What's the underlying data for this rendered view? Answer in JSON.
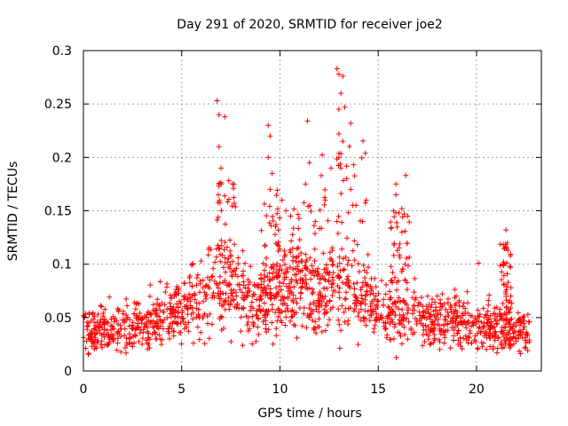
{
  "chart_data": {
    "type": "scatter",
    "title": "Day 291 of 2020, SRMTID for receiver joe2",
    "xlabel": "GPS time / hours",
    "ylabel": "SRMTID / TECUs",
    "xlim": [
      0,
      23.3
    ],
    "ylim": [
      0,
      0.3
    ],
    "x_ticks": [
      0,
      5,
      10,
      15,
      20
    ],
    "x_tick_labels": [
      "0",
      "5",
      "10",
      "15",
      "20"
    ],
    "y_ticks": [
      0,
      0.05,
      0.1,
      0.15,
      0.2,
      0.25,
      0.3
    ],
    "y_tick_labels": [
      "0",
      "0.05",
      "0.1",
      "0.15",
      "0.2",
      "0.25",
      "0.3"
    ],
    "grid": true,
    "marker": "+",
    "color": "#ff0000",
    "x_range_of_data": [
      0,
      22.7
    ],
    "baseline_envelope": [
      [
        0,
        0.038
      ],
      [
        1,
        0.04
      ],
      [
        2,
        0.04
      ],
      [
        3,
        0.042
      ],
      [
        4,
        0.05
      ],
      [
        5,
        0.058
      ],
      [
        6,
        0.068
      ],
      [
        6.8,
        0.082
      ],
      [
        7.5,
        0.078
      ],
      [
        8.5,
        0.066
      ],
      [
        9.5,
        0.068
      ],
      [
        10.2,
        0.085
      ],
      [
        11,
        0.08
      ],
      [
        12,
        0.07
      ],
      [
        13,
        0.085
      ],
      [
        14,
        0.075
      ],
      [
        15,
        0.058
      ],
      [
        16,
        0.052
      ],
      [
        17,
        0.05
      ],
      [
        18,
        0.048
      ],
      [
        19,
        0.046
      ],
      [
        20,
        0.044
      ],
      [
        21,
        0.04
      ],
      [
        22,
        0.038
      ],
      [
        22.7,
        0.036
      ]
    ],
    "notable_points": [
      {
        "x": 6.8,
        "y": 0.253
      },
      {
        "x": 6.9,
        "y": 0.24
      },
      {
        "x": 7.2,
        "y": 0.238
      },
      {
        "x": 6.9,
        "y": 0.21
      },
      {
        "x": 7.0,
        "y": 0.19
      },
      {
        "x": 6.9,
        "y": 0.175
      },
      {
        "x": 9.4,
        "y": 0.23
      },
      {
        "x": 9.5,
        "y": 0.22
      },
      {
        "x": 9.4,
        "y": 0.2
      },
      {
        "x": 9.6,
        "y": 0.185
      },
      {
        "x": 9.5,
        "y": 0.17
      },
      {
        "x": 10.1,
        "y": 0.16
      },
      {
        "x": 10.3,
        "y": 0.15
      },
      {
        "x": 11.4,
        "y": 0.234
      },
      {
        "x": 11.5,
        "y": 0.195
      },
      {
        "x": 11.3,
        "y": 0.175
      },
      {
        "x": 12.3,
        "y": 0.16
      },
      {
        "x": 12.6,
        "y": 0.19
      },
      {
        "x": 12.9,
        "y": 0.283
      },
      {
        "x": 13.0,
        "y": 0.278
      },
      {
        "x": 13.2,
        "y": 0.276
      },
      {
        "x": 13.1,
        "y": 0.26
      },
      {
        "x": 13.0,
        "y": 0.245
      },
      {
        "x": 13.3,
        "y": 0.247
      },
      {
        "x": 13.6,
        "y": 0.232
      },
      {
        "x": 13.0,
        "y": 0.222
      },
      {
        "x": 13.2,
        "y": 0.215
      },
      {
        "x": 13.0,
        "y": 0.2
      },
      {
        "x": 13.1,
        "y": 0.19
      },
      {
        "x": 13.4,
        "y": 0.18
      },
      {
        "x": 13.6,
        "y": 0.17
      },
      {
        "x": 14.2,
        "y": 0.14
      },
      {
        "x": 15.9,
        "y": 0.175
      },
      {
        "x": 15.9,
        "y": 0.165
      },
      {
        "x": 16.2,
        "y": 0.152
      },
      {
        "x": 16.4,
        "y": 0.183
      },
      {
        "x": 16.5,
        "y": 0.145
      },
      {
        "x": 20.1,
        "y": 0.101
      },
      {
        "x": 21.5,
        "y": 0.132
      },
      {
        "x": 21.5,
        "y": 0.116
      },
      {
        "x": 21.6,
        "y": 0.113
      },
      {
        "x": 21.7,
        "y": 0.098
      },
      {
        "x": 21.6,
        "y": 0.083
      }
    ]
  }
}
